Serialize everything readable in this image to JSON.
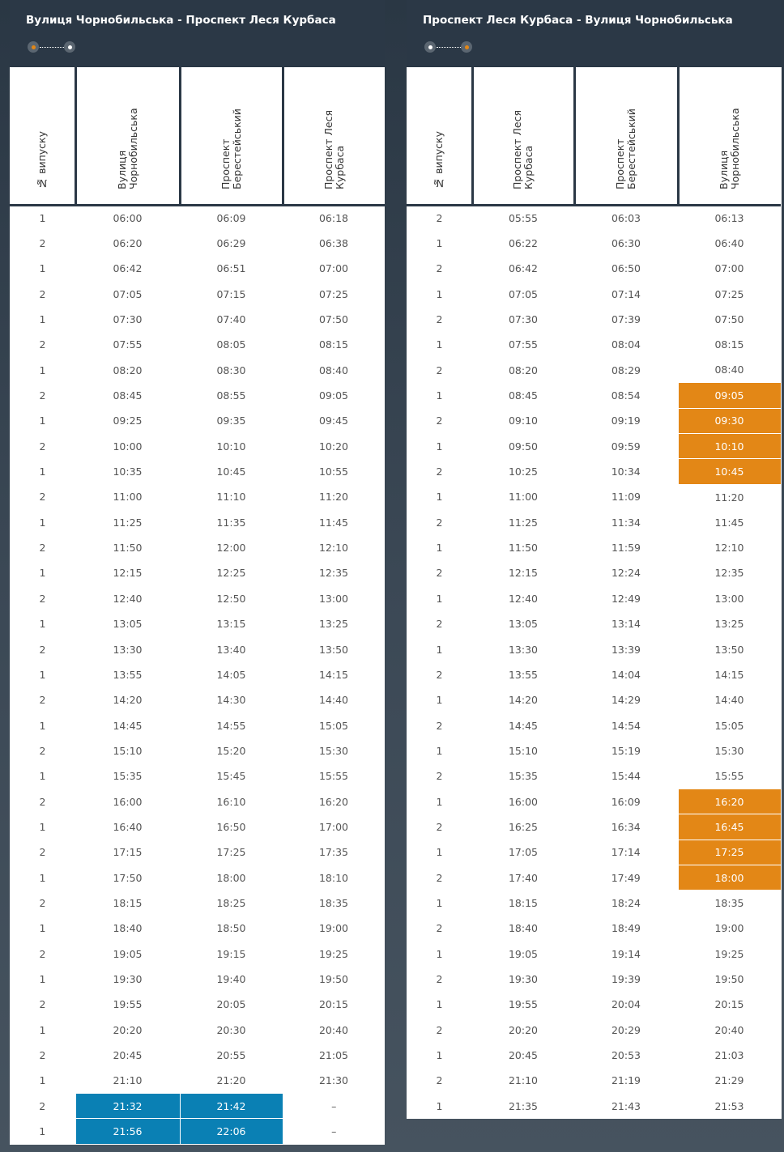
{
  "colors": {
    "blue_highlight": "#0a80b4",
    "orange_highlight": "#e38716",
    "header_bg": "#2b3846"
  },
  "panels": [
    {
      "title": "Вулиця Чорнобильська - Проспект Леся Курбаса",
      "direction_indicator": {
        "active": "first",
        "icon": "route-dots-icon"
      },
      "headers": [
        "№ випуску",
        "Вулиця Чорнобильська",
        "Проспект Берестейський",
        "Проспект Леся Курбаса"
      ],
      "rows": [
        [
          "1",
          "06:00",
          "06:09",
          "06:18"
        ],
        [
          "2",
          "06:20",
          "06:29",
          "06:38"
        ],
        [
          "1",
          "06:42",
          "06:51",
          "07:00"
        ],
        [
          "2",
          "07:05",
          "07:15",
          "07:25"
        ],
        [
          "1",
          "07:30",
          "07:40",
          "07:50"
        ],
        [
          "2",
          "07:55",
          "08:05",
          "08:15"
        ],
        [
          "1",
          "08:20",
          "08:30",
          "08:40"
        ],
        [
          "2",
          "08:45",
          "08:55",
          "09:05"
        ],
        [
          "1",
          "09:25",
          "09:35",
          "09:45"
        ],
        [
          "2",
          "10:00",
          "10:10",
          "10:20"
        ],
        [
          "1",
          "10:35",
          "10:45",
          "10:55"
        ],
        [
          "2",
          "11:00",
          "11:10",
          "11:20"
        ],
        [
          "1",
          "11:25",
          "11:35",
          "11:45"
        ],
        [
          "2",
          "11:50",
          "12:00",
          "12:10"
        ],
        [
          "1",
          "12:15",
          "12:25",
          "12:35"
        ],
        [
          "2",
          "12:40",
          "12:50",
          "13:00"
        ],
        [
          "1",
          "13:05",
          "13:15",
          "13:25"
        ],
        [
          "2",
          "13:30",
          "13:40",
          "13:50"
        ],
        [
          "1",
          "13:55",
          "14:05",
          "14:15"
        ],
        [
          "2",
          "14:20",
          "14:30",
          "14:40"
        ],
        [
          "1",
          "14:45",
          "14:55",
          "15:05"
        ],
        [
          "2",
          "15:10",
          "15:20",
          "15:30"
        ],
        [
          "1",
          "15:35",
          "15:45",
          "15:55"
        ],
        [
          "2",
          "16:00",
          "16:10",
          "16:20"
        ],
        [
          "1",
          "16:40",
          "16:50",
          "17:00"
        ],
        [
          "2",
          "17:15",
          "17:25",
          "17:35"
        ],
        [
          "1",
          "17:50",
          "18:00",
          "18:10"
        ],
        [
          "2",
          "18:15",
          "18:25",
          "18:35"
        ],
        [
          "1",
          "18:40",
          "18:50",
          "19:00"
        ],
        [
          "2",
          "19:05",
          "19:15",
          "19:25"
        ],
        [
          "1",
          "19:30",
          "19:40",
          "19:50"
        ],
        [
          "2",
          "19:55",
          "20:05",
          "20:15"
        ],
        [
          "1",
          "20:20",
          "20:30",
          "20:40"
        ],
        [
          "2",
          "20:45",
          "20:55",
          "21:05"
        ],
        [
          "1",
          "21:10",
          "21:20",
          "21:30"
        ],
        [
          "2",
          "21:32",
          "21:42",
          "–"
        ],
        [
          "1",
          "21:56",
          "22:06",
          "–"
        ]
      ],
      "highlights": [
        {
          "row": 35,
          "cols": [
            1,
            2
          ],
          "color": "#0a80b4"
        },
        {
          "row": 36,
          "cols": [
            1,
            2
          ],
          "color": "#0a80b4"
        }
      ]
    },
    {
      "title": "Проспект Леся Курбаса - Вулиця Чорнобильська",
      "direction_indicator": {
        "active": "second",
        "icon": "route-dots-icon"
      },
      "headers": [
        "№ випуску",
        "Проспект Леся Курбаса",
        "Проспект Берестейський",
        "Вулиця Чорнобильська"
      ],
      "rows": [
        [
          "2",
          "05:55",
          "06:03",
          "06:13"
        ],
        [
          "1",
          "06:22",
          "06:30",
          "06:40"
        ],
        [
          "2",
          "06:42",
          "06:50",
          "07:00"
        ],
        [
          "1",
          "07:05",
          "07:14",
          "07:25"
        ],
        [
          "2",
          "07:30",
          "07:39",
          "07:50"
        ],
        [
          "1",
          "07:55",
          "08:04",
          "08:15"
        ],
        [
          "2",
          "08:20",
          "08:29",
          "08:40"
        ],
        [
          "1",
          "08:45",
          "08:54",
          "09:05"
        ],
        [
          "2",
          "09:10",
          "09:19",
          "09:30"
        ],
        [
          "1",
          "09:50",
          "09:59",
          "10:10"
        ],
        [
          "2",
          "10:25",
          "10:34",
          "10:45"
        ],
        [
          "1",
          "11:00",
          "11:09",
          "11:20"
        ],
        [
          "2",
          "11:25",
          "11:34",
          "11:45"
        ],
        [
          "1",
          "11:50",
          "11:59",
          "12:10"
        ],
        [
          "2",
          "12:15",
          "12:24",
          "12:35"
        ],
        [
          "1",
          "12:40",
          "12:49",
          "13:00"
        ],
        [
          "2",
          "13:05",
          "13:14",
          "13:25"
        ],
        [
          "1",
          "13:30",
          "13:39",
          "13:50"
        ],
        [
          "2",
          "13:55",
          "14:04",
          "14:15"
        ],
        [
          "1",
          "14:20",
          "14:29",
          "14:40"
        ],
        [
          "2",
          "14:45",
          "14:54",
          "15:05"
        ],
        [
          "1",
          "15:10",
          "15:19",
          "15:30"
        ],
        [
          "2",
          "15:35",
          "15:44",
          "15:55"
        ],
        [
          "1",
          "16:00",
          "16:09",
          "16:20"
        ],
        [
          "2",
          "16:25",
          "16:34",
          "16:45"
        ],
        [
          "1",
          "17:05",
          "17:14",
          "17:25"
        ],
        [
          "2",
          "17:40",
          "17:49",
          "18:00"
        ],
        [
          "1",
          "18:15",
          "18:24",
          "18:35"
        ],
        [
          "2",
          "18:40",
          "18:49",
          "19:00"
        ],
        [
          "1",
          "19:05",
          "19:14",
          "19:25"
        ],
        [
          "2",
          "19:30",
          "19:39",
          "19:50"
        ],
        [
          "1",
          "19:55",
          "20:04",
          "20:15"
        ],
        [
          "2",
          "20:20",
          "20:29",
          "20:40"
        ],
        [
          "1",
          "20:45",
          "20:53",
          "21:03"
        ],
        [
          "2",
          "21:10",
          "21:19",
          "21:29"
        ],
        [
          "1",
          "21:35",
          "21:43",
          "21:53"
        ]
      ],
      "highlights": [
        {
          "row": 7,
          "cols": [
            3
          ],
          "color": "#e38716"
        },
        {
          "row": 8,
          "cols": [
            3
          ],
          "color": "#e38716"
        },
        {
          "row": 9,
          "cols": [
            3
          ],
          "color": "#e38716"
        },
        {
          "row": 10,
          "cols": [
            3
          ],
          "color": "#e38716"
        },
        {
          "row": 23,
          "cols": [
            3
          ],
          "color": "#e38716"
        },
        {
          "row": 24,
          "cols": [
            3
          ],
          "color": "#e38716"
        },
        {
          "row": 25,
          "cols": [
            3
          ],
          "color": "#e38716"
        },
        {
          "row": 26,
          "cols": [
            3
          ],
          "color": "#e38716"
        }
      ]
    }
  ]
}
